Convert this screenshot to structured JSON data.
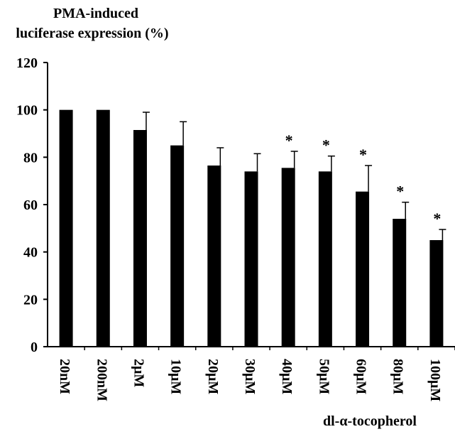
{
  "chart_data": {
    "type": "bar",
    "ylabel_line1": "PMA-induced",
    "ylabel_line2": "luciferase expression (%)",
    "xlabel": "dl-α-tocopherol",
    "ylim": [
      0,
      120
    ],
    "yticks": [
      "0",
      "20",
      "40",
      "60",
      "80",
      "100",
      "120"
    ],
    "categories": [
      "20nM",
      "200nM",
      "2μM",
      "10μM",
      "20μM",
      "30μM",
      "40μM",
      "50μM",
      "60μM",
      "80μM",
      "100μM"
    ],
    "values": [
      100,
      100,
      91.5,
      85,
      76.5,
      74,
      75.5,
      74,
      65.5,
      54,
      45
    ],
    "errors": [
      0,
      0,
      7.5,
      10,
      7.5,
      7.5,
      7,
      6.5,
      11,
      7,
      4.5
    ],
    "significance": [
      "",
      "",
      "",
      "",
      "",
      "",
      "*",
      "*",
      "*",
      "*",
      "*"
    ],
    "bar_color": "#000000",
    "grid": false
  }
}
